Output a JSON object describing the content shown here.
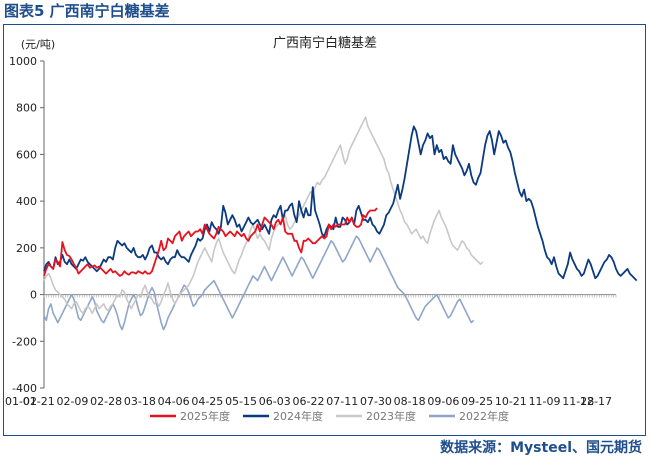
{
  "figure_label": "图表5 广西南宁白糖基差",
  "source": "数据来源：Mysteel、国元期货",
  "colors": {
    "s2025": "#e8111f",
    "s2024": "#0b3a7e",
    "s2023": "#c8c8c8",
    "s2022": "#8fa6c8"
  },
  "chart_data": {
    "type": "line",
    "title": "广西南宁白糖基差",
    "ylabel": "(元/吨)",
    "xlabel": "",
    "ylim": [
      -400,
      1000
    ],
    "yticks": [
      -400,
      -200,
      0,
      200,
      400,
      600,
      800,
      1000
    ],
    "x_tick_labels": [
      "01-02",
      "01-21",
      "02-09",
      "02-28",
      "03-18",
      "04-06",
      "04-25",
      "05-15",
      "06-03",
      "06-22",
      "07-11",
      "07-30",
      "08-18",
      "09-06",
      "09-25",
      "10-21",
      "11-09",
      "11-28",
      "12-17"
    ],
    "grid": false,
    "legend_position": "bottom",
    "series": [
      {
        "name": "2025年度",
        "color_key": "s2025",
        "values": [
          80,
          110,
          130,
          120,
          110,
          150,
          140,
          120,
          225,
          190,
          170,
          165,
          150,
          130,
          115,
          90,
          100,
          110,
          120,
          130,
          115,
          120,
          125,
          115,
          120,
          110,
          100,
          90,
          100,
          110,
          95,
          100,
          90,
          80,
          85,
          100,
          90,
          85,
          95,
          95,
          90,
          100,
          95,
          90,
          100,
          90,
          90,
          100,
          130,
          160,
          190,
          230,
          190,
          200,
          240,
          230,
          220,
          250,
          260,
          270,
          230,
          250,
          260,
          270,
          250,
          260,
          270,
          270,
          280,
          260,
          300,
          280,
          260,
          250,
          240,
          260,
          290,
          280,
          270,
          250,
          260,
          270,
          260,
          250,
          270,
          260,
          250,
          260,
          240,
          230,
          250,
          260,
          270,
          300,
          270,
          300,
          330,
          320,
          310,
          300,
          280,
          310,
          320,
          300,
          330,
          270,
          260,
          260,
          260,
          230,
          230,
          200,
          180,
          230,
          230,
          240,
          230,
          220,
          220,
          230,
          240,
          250,
          240,
          250,
          300,
          280,
          300,
          290,
          300,
          300,
          300,
          300,
          330,
          310,
          330,
          300,
          290,
          290,
          300,
          340,
          330,
          350,
          360,
          360,
          360,
          370
        ]
      },
      {
        "name": "2024年度",
        "color_key": "s2024",
        "values": [
          100,
          130,
          140,
          120,
          110,
          160,
          130,
          140,
          170,
          140,
          130,
          150,
          130,
          120,
          110,
          130,
          150,
          145,
          160,
          140,
          130,
          120,
          110,
          100,
          110,
          130,
          150,
          140,
          160,
          160,
          150,
          200,
          230,
          220,
          210,
          220,
          200,
          190,
          180,
          200,
          170,
          160,
          160,
          170,
          150,
          170,
          200,
          210,
          180,
          180,
          160,
          150,
          160,
          140,
          130,
          150,
          160,
          160,
          190,
          170,
          160,
          160,
          150,
          140,
          170,
          190,
          210,
          240,
          230,
          240,
          280,
          300,
          270,
          310,
          290,
          280,
          260,
          290,
          380,
          350,
          300,
          320,
          340,
          320,
          290,
          300,
          270,
          290,
          310,
          330,
          310,
          300,
          310,
          320,
          300,
          280,
          300,
          280,
          260,
          320,
          340,
          330,
          360,
          380,
          320,
          360,
          360,
          380,
          390,
          340,
          310,
          400,
          360,
          330,
          370,
          340,
          340,
          460,
          360,
          330,
          300,
          260,
          250,
          280,
          300,
          290,
          280,
          330,
          290,
          290,
          330,
          320,
          300,
          310,
          330,
          300,
          360,
          380,
          350,
          320,
          320,
          310,
          330,
          300,
          290,
          270,
          260,
          280,
          300,
          340,
          350,
          370,
          390,
          430,
          470,
          410,
          450,
          500,
          560,
          620,
          680,
          720,
          700,
          650,
          600,
          640,
          660,
          690,
          670,
          680,
          600,
          640,
          610,
          620,
          580,
          590,
          570,
          560,
          640,
          600,
          580,
          560,
          540,
          510,
          530,
          560,
          510,
          480,
          470,
          500,
          520,
          580,
          640,
          680,
          700,
          660,
          600,
          650,
          700,
          680,
          650,
          660,
          630,
          610,
          570,
          520,
          480,
          440,
          420,
          450,
          400,
          410,
          400,
          370,
          330,
          290,
          260,
          230,
          190,
          160,
          150,
          130,
          160,
          120,
          90,
          80,
          70,
          100,
          130,
          180,
          150,
          130,
          110,
          100,
          80,
          90,
          120,
          150,
          130,
          100,
          70,
          80,
          100,
          120,
          140,
          150,
          170,
          160,
          140,
          110,
          90,
          80,
          90,
          100,
          110,
          90,
          80,
          70,
          60
        ]
      },
      {
        "name": "2023年度",
        "color_key": "s2023",
        "values": [
          60,
          80,
          90,
          70,
          40,
          20,
          10,
          0,
          -10,
          -20,
          -40,
          -50,
          -60,
          -40,
          -30,
          -50,
          -70,
          -80,
          -60,
          -50,
          -60,
          -80,
          -60,
          -40,
          -60,
          -50,
          -40,
          -60,
          -70,
          -50,
          -40,
          -20,
          0,
          -10,
          20,
          10,
          -20,
          -40,
          -60,
          -40,
          -20,
          0,
          -10,
          20,
          40,
          10,
          -10,
          -20,
          -40,
          -30,
          -50,
          -30,
          0,
          20,
          50,
          10,
          -20,
          -40,
          -20,
          0,
          10,
          20,
          30,
          40,
          60,
          80,
          110,
          140,
          160,
          180,
          200,
          180,
          160,
          140,
          190,
          220,
          240,
          210,
          180,
          160,
          140,
          120,
          100,
          90,
          120,
          150,
          170,
          200,
          220,
          240,
          280,
          300,
          270,
          240,
          260,
          240,
          230,
          210,
          190,
          240,
          270,
          290,
          300,
          310,
          320,
          340,
          300,
          280,
          290,
          310,
          320,
          340,
          360,
          380,
          400,
          420,
          440,
          430,
          460,
          480,
          470,
          490,
          500,
          520,
          540,
          560,
          580,
          600,
          620,
          640,
          600,
          560,
          580,
          620,
          640,
          660,
          680,
          700,
          720,
          740,
          760,
          720,
          700,
          680,
          660,
          640,
          620,
          600,
          580,
          540,
          520,
          480,
          450,
          420,
          390,
          360,
          340,
          310,
          300,
          280,
          260,
          270,
          280,
          260,
          240,
          250,
          230,
          220,
          260,
          290,
          320,
          340,
          360,
          330,
          310,
          290,
          260,
          230,
          210,
          200,
          190,
          210,
          230,
          220,
          200,
          190,
          170,
          160,
          150,
          140,
          130,
          140
        ]
      },
      {
        "name": "2022年度",
        "color_key": "s2022",
        "values": [
          -90,
          -110,
          -60,
          -40,
          -80,
          -100,
          -120,
          -100,
          -80,
          -60,
          -40,
          -20,
          0,
          -20,
          -60,
          -100,
          -110,
          -90,
          -70,
          -50,
          -30,
          -10,
          -30,
          -70,
          -90,
          -110,
          -120,
          -100,
          -80,
          -60,
          -40,
          -60,
          -90,
          -130,
          -150,
          -120,
          -80,
          -40,
          -20,
          0,
          -20,
          -60,
          -90,
          -80,
          -50,
          -20,
          10,
          30,
          10,
          -40,
          -80,
          -120,
          -150,
          -130,
          -100,
          -80,
          -60,
          -40,
          -20,
          0,
          20,
          40,
          30,
          10,
          -20,
          -50,
          -40,
          -20,
          -10,
          0,
          20,
          30,
          40,
          50,
          60,
          40,
          20,
          0,
          -20,
          -40,
          -60,
          -80,
          -100,
          -80,
          -60,
          -40,
          -20,
          0,
          20,
          40,
          60,
          80,
          70,
          60,
          80,
          100,
          120,
          100,
          80,
          60,
          80,
          100,
          120,
          140,
          160,
          140,
          120,
          100,
          80,
          100,
          120,
          140,
          160,
          150,
          130,
          110,
          90,
          70,
          90,
          110,
          130,
          150,
          170,
          190,
          210,
          230,
          220,
          200,
          180,
          160,
          140,
          150,
          170,
          190,
          210,
          230,
          250,
          240,
          220,
          200,
          180,
          160,
          140,
          160,
          180,
          200,
          190,
          170,
          150,
          130,
          110,
          90,
          70,
          50,
          30,
          20,
          10,
          0,
          -20,
          -40,
          -60,
          -80,
          -100,
          -110,
          -90,
          -70,
          -50,
          -40,
          -30,
          -20,
          -10,
          0,
          -20,
          -40,
          -60,
          -80,
          -100,
          -90,
          -70,
          -50,
          -30,
          -20,
          -40,
          -60,
          -80,
          -100,
          -120,
          -110
        ]
      }
    ]
  }
}
